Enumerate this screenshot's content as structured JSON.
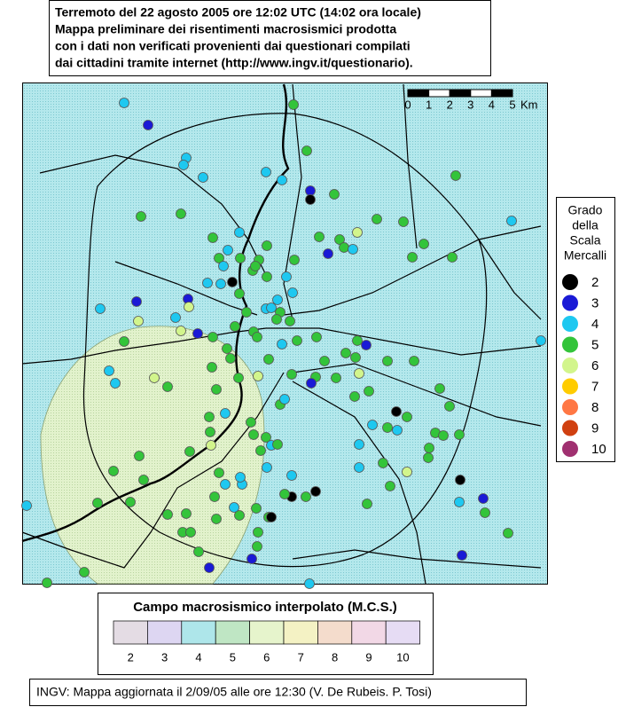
{
  "header": {
    "lines": [
      "Terremoto del 22 agosto 2005 ore 12:02 UTC (14:02 ora locale)",
      "Mappa preliminare dei risentimenti macrosismici prodotta",
      "con i dati non verificati provenienti dai questionari compilati",
      "dai cittadini tramite internet (http://www.ingv.it/questionario)."
    ]
  },
  "scale_bar": {
    "labels": [
      "0",
      "1",
      "2",
      "3",
      "4",
      "5"
    ],
    "unit": "Km"
  },
  "legend": {
    "title_lines": [
      "Grado",
      "della",
      "Scala",
      "Mercalli"
    ],
    "grades": [
      2,
      3,
      4,
      5,
      6,
      7,
      8,
      9,
      10
    ],
    "colors": [
      "#000000",
      "#1a1ad6",
      "#1ec8f0",
      "#33c43a",
      "#d2f58c",
      "#ffcc00",
      "#ff7744",
      "#d04010",
      "#a03070"
    ]
  },
  "points": [
    4,
    3,
    5,
    5,
    4,
    4,
    4,
    4,
    4,
    3,
    2,
    5,
    5,
    5,
    5,
    4,
    5,
    5,
    5,
    4,
    5,
    5,
    5,
    5,
    6,
    4,
    3,
    5,
    5,
    5,
    5,
    4,
    5,
    5,
    5,
    4,
    2,
    5,
    5,
    4,
    5,
    3,
    4,
    3,
    6,
    4,
    4,
    4,
    6,
    3,
    6,
    5,
    5,
    5,
    5,
    4,
    5,
    5,
    5,
    5,
    5,
    4,
    5,
    5,
    5,
    5,
    3,
    5,
    5,
    5,
    5,
    5,
    5,
    6,
    5,
    6,
    5,
    4,
    4,
    5,
    4,
    5,
    5,
    5,
    5,
    5,
    5,
    4,
    4,
    5,
    5,
    4,
    5,
    5,
    3,
    5,
    6,
    5,
    5,
    5,
    5,
    2,
    5,
    4,
    5,
    5,
    5,
    5,
    5,
    5,
    5,
    5,
    4,
    4,
    5,
    4,
    6,
    2,
    4,
    3,
    5,
    5,
    3,
    5,
    5,
    2,
    5,
    2,
    4,
    5,
    5,
    5,
    2,
    5,
    5,
    5,
    5,
    4,
    5,
    4,
    4,
    4,
    5,
    6,
    5,
    5,
    5,
    5,
    5,
    5,
    5,
    5,
    5,
    5,
    5,
    3,
    3,
    5,
    5,
    4,
    4,
    4,
    4,
    4,
    4,
    5
  ],
  "field_legend": {
    "title": "Campo macrosismico interpolato (M.C.S.)",
    "labels": [
      "2",
      "3",
      "4",
      "5",
      "6",
      "7",
      "8",
      "9",
      "10"
    ],
    "colors": [
      "#e4dce4",
      "#ddd6f2",
      "#aee6ea",
      "#bfe6c4",
      "#e6f4cc",
      "#f4f2c4",
      "#f4dccc",
      "#f2d8e6",
      "#e6dcf4"
    ]
  },
  "footer": "INGV: Mappa aggiornata il 2/09/05 alle ore 12:30 (V. De Rubeis. P. Tosi)"
}
